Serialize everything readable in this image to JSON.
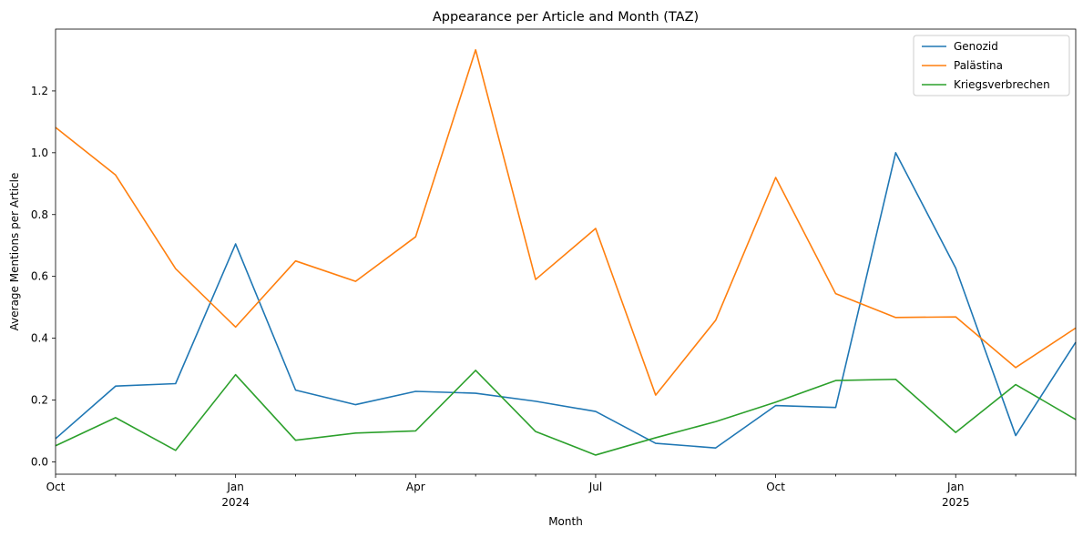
{
  "chart_data": {
    "type": "line",
    "title": "Appearance per Article and Month (TAZ)",
    "xlabel": "Month",
    "ylabel": "Average Mentions per Article",
    "x": [
      "2023-10",
      "2023-11",
      "2023-12",
      "2024-01",
      "2024-02",
      "2024-03",
      "2024-04",
      "2024-05",
      "2024-06",
      "2024-07",
      "2024-08",
      "2024-09",
      "2024-10",
      "2024-11",
      "2024-12",
      "2025-01",
      "2025-02",
      "2025-03"
    ],
    "ylim": [
      -0.04,
      1.4
    ],
    "yticks": [
      "0.0",
      "0.2",
      "0.4",
      "0.6",
      "0.8",
      "1.0",
      "1.2"
    ],
    "xticks": [
      {
        "label": "Oct",
        "sublabel": ""
      },
      {
        "label": "Jan",
        "sublabel": "2024"
      },
      {
        "label": "Apr",
        "sublabel": ""
      },
      {
        "label": "Jul",
        "sublabel": ""
      },
      {
        "label": "Oct",
        "sublabel": ""
      },
      {
        "label": "Jan",
        "sublabel": "2025"
      }
    ],
    "grid": false,
    "legend_position": "top-right",
    "series": [
      {
        "name": "Genozid",
        "color": "#1f77b4",
        "values": [
          0.075,
          0.245,
          0.253,
          0.705,
          0.232,
          0.185,
          0.228,
          0.222,
          0.196,
          0.163,
          0.06,
          0.045,
          0.182,
          0.176,
          1.0,
          0.627,
          0.085,
          0.387
        ]
      },
      {
        "name": "Palästina",
        "color": "#ff7f0e",
        "values": [
          1.082,
          0.928,
          0.625,
          0.436,
          0.65,
          0.584,
          0.728,
          1.333,
          0.59,
          0.755,
          0.216,
          0.458,
          0.92,
          0.544,
          0.467,
          0.469,
          0.305,
          0.433
        ]
      },
      {
        "name": "Kriegsverbrechen",
        "color": "#2ca02c",
        "values": [
          0.052,
          0.143,
          0.037,
          0.282,
          0.07,
          0.093,
          0.1,
          0.296,
          0.098,
          0.022,
          0.078,
          0.13,
          0.193,
          0.263,
          0.267,
          0.095,
          0.25,
          0.137
        ]
      }
    ]
  }
}
